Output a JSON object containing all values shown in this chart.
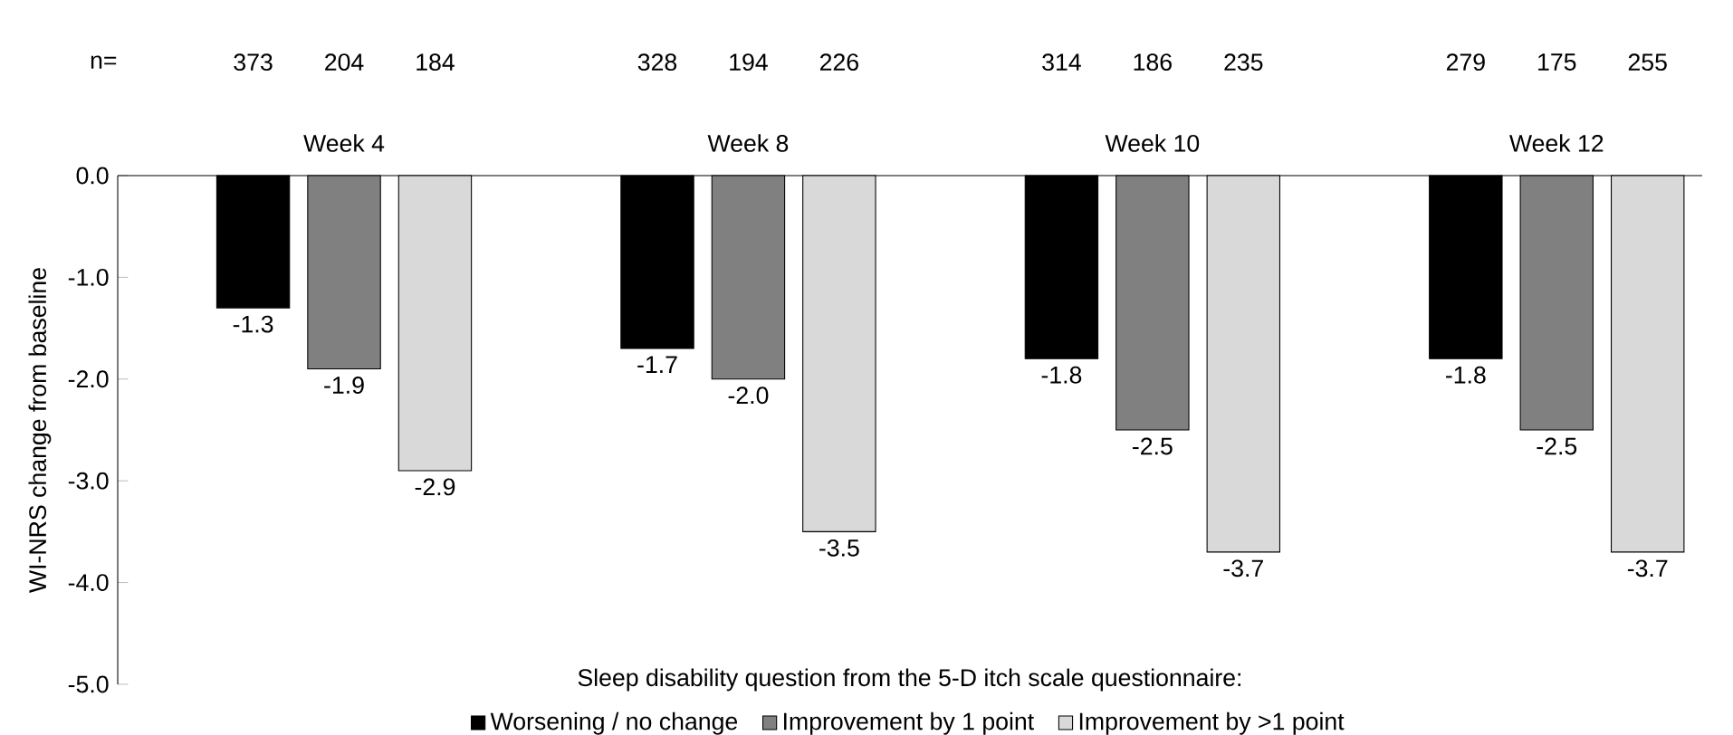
{
  "chart_data": {
    "type": "bar",
    "categories": [
      "Week 4",
      "Week 8",
      "Week 10",
      "Week 12"
    ],
    "ylabel": "WI-NRS change from baseline",
    "legend_title": "Sleep disability question from the 5-D itch scale questionnaire:",
    "series": [
      {
        "name": "Worsening / no change",
        "color": "#000000",
        "values": [
          -1.3,
          -1.7,
          -1.8,
          -1.8
        ],
        "value_labels": [
          "-1.3",
          "-1.7",
          "-1.8",
          "-1.8"
        ]
      },
      {
        "name": "Improvement by 1 point",
        "color": "#808080",
        "values": [
          -1.9,
          -2.0,
          -2.5,
          -2.5
        ],
        "value_labels": [
          "-1.9",
          "-2.0",
          "-2.5",
          "-2.5"
        ]
      },
      {
        "name": "Improvement by >1 point",
        "color": "#d9d9d9",
        "values": [
          -2.9,
          -3.5,
          -3.7,
          -3.7
        ],
        "value_labels": [
          "-2.9",
          "-3.5",
          "-3.7",
          "-3.7"
        ]
      }
    ],
    "ylim": [
      -5,
      0
    ],
    "yticks": [
      {
        "value": 0,
        "label": "0.0"
      },
      {
        "value": -1,
        "label": "-1.0"
      },
      {
        "value": -2,
        "label": "-2.0"
      },
      {
        "value": -3,
        "label": "-3.0"
      },
      {
        "value": -4,
        "label": "-4.0"
      },
      {
        "value": -5,
        "label": "-5.0"
      }
    ],
    "annotations": [
      "n=",
      "373",
      "204",
      "184",
      "328",
      "194",
      "226",
      "314",
      "186",
      "235",
      "279",
      "175",
      "255"
    ],
    "legend": "bottom",
    "grid": false
  }
}
